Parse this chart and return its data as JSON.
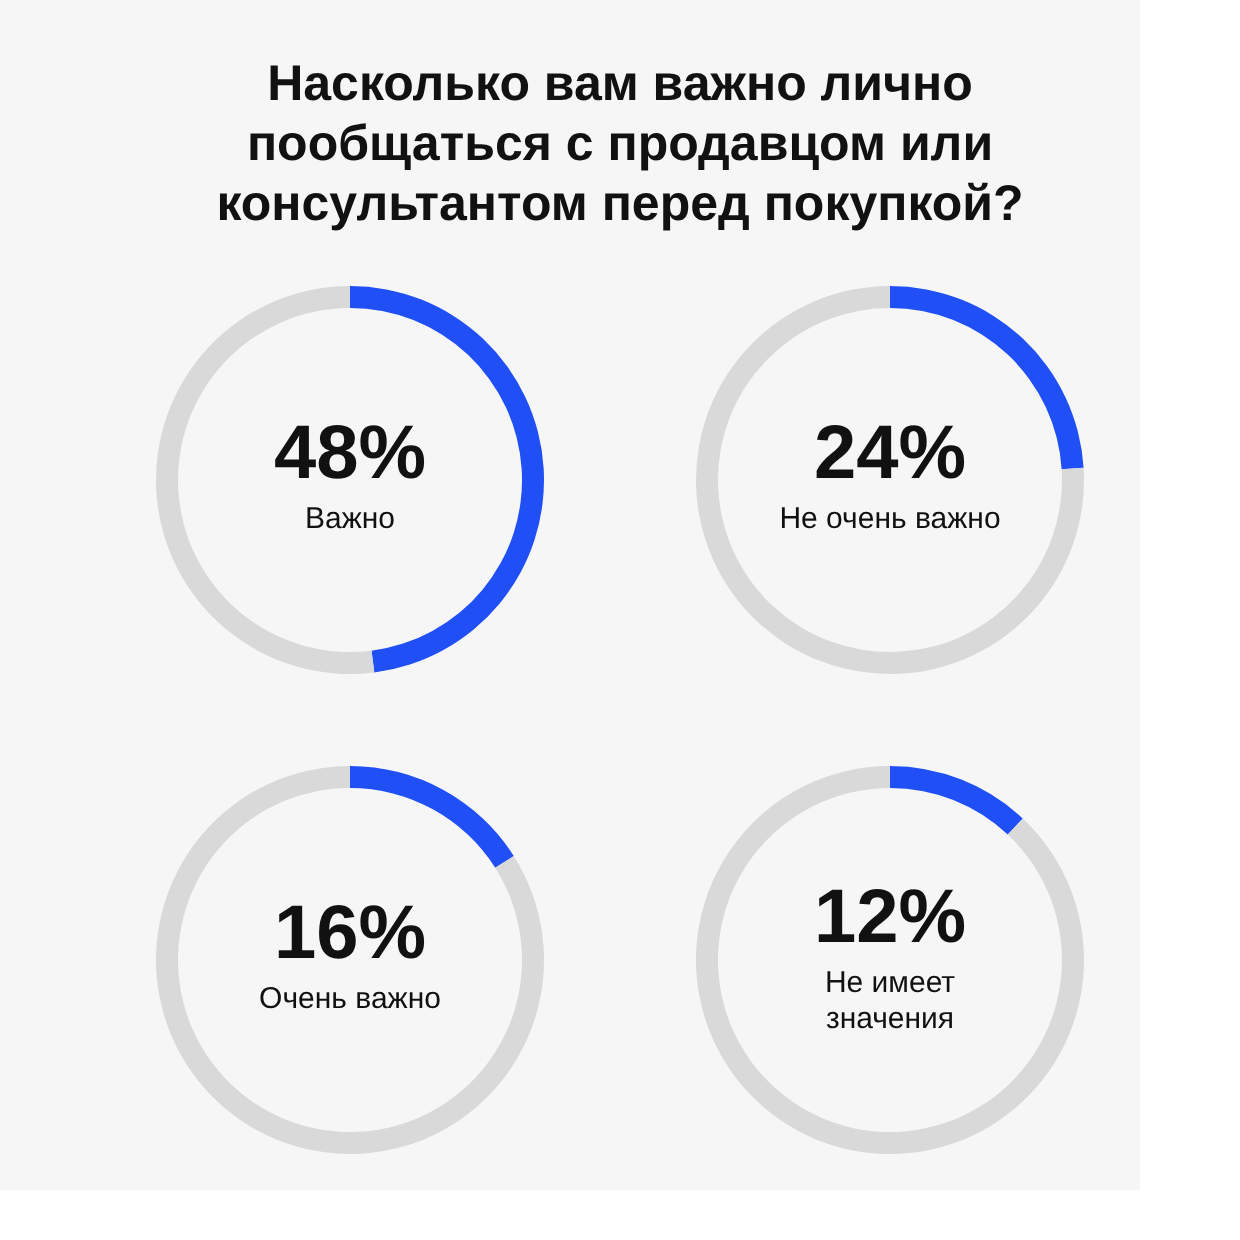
{
  "chart_data": [
    {
      "type": "donut",
      "title": "Насколько вам важно лично пообщаться с продавцом или консультантом перед покупкой?",
      "categories": [
        "Важно",
        null
      ],
      "values": [
        48,
        52
      ],
      "colors": [
        "#1f4ff5",
        "#d9d9d9"
      ],
      "value_labels": [
        "48%",
        null
      ]
    },
    {
      "type": "donut",
      "categories": [
        "Не очень важно",
        null
      ],
      "values": [
        24,
        76
      ],
      "colors": [
        "#1f4ff5",
        "#d9d9d9"
      ],
      "value_labels": [
        "24%",
        null
      ]
    },
    {
      "type": "donut",
      "categories": [
        "Очень важно",
        null
      ],
      "values": [
        16,
        84
      ],
      "colors": [
        "#1f4ff5",
        "#d9d9d9"
      ],
      "value_labels": [
        "16%",
        null
      ]
    },
    {
      "type": "donut",
      "categories": [
        "Не имеет значения",
        null
      ],
      "values": [
        12,
        88
      ],
      "colors": [
        "#1f4ff5",
        "#d9d9d9"
      ],
      "value_labels": [
        "12%",
        null
      ]
    }
  ]
}
